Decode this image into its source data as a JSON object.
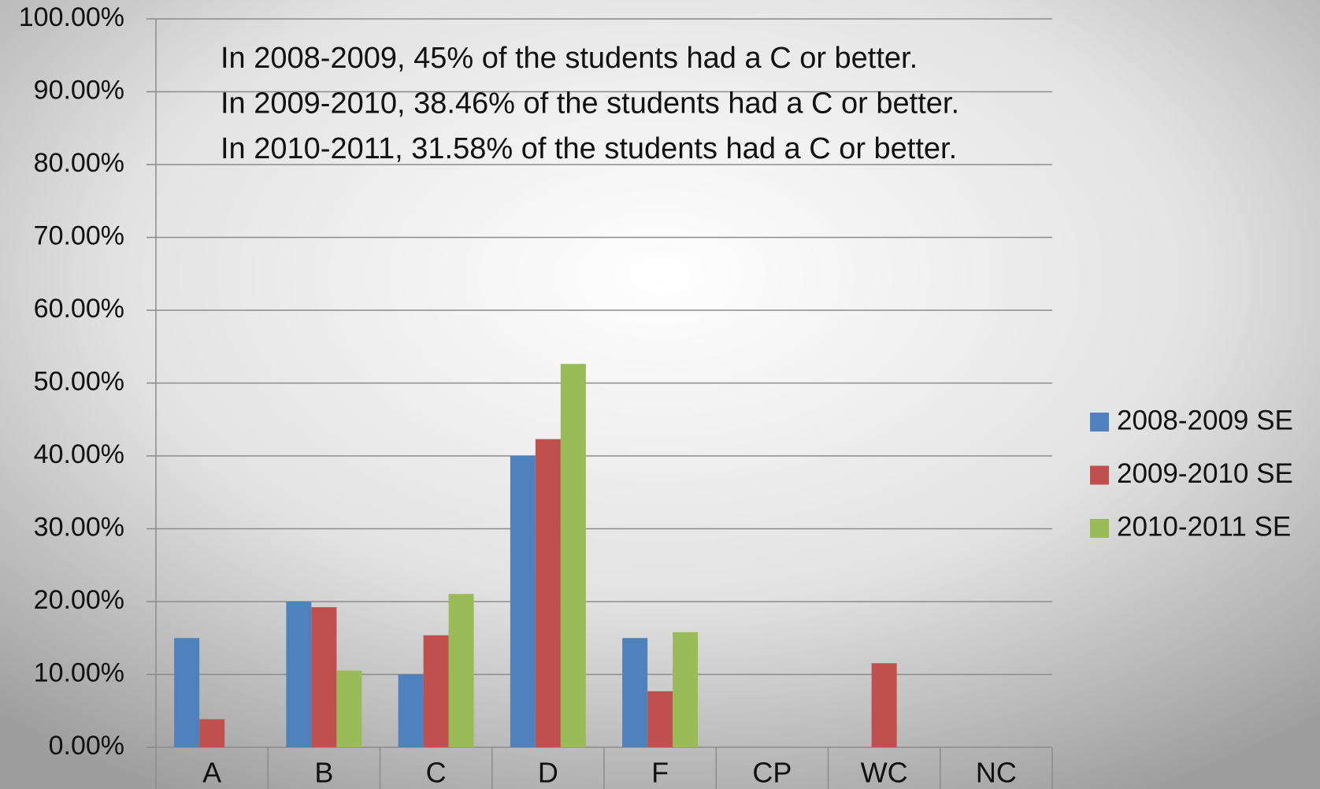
{
  "chart_data": {
    "type": "bar",
    "categories": [
      "A",
      "B",
      "C",
      "D",
      "F",
      "CP",
      "WC",
      "NC"
    ],
    "series": [
      {
        "name": "2008-2009 SE",
        "color": "#4f81bd",
        "values": [
          15,
          20,
          10,
          40,
          15,
          0,
          0,
          0
        ]
      },
      {
        "name": "2009-2010 SE",
        "color": "#c0504d",
        "values": [
          3.85,
          19.23,
          15.38,
          42.31,
          7.69,
          0,
          11.54,
          0
        ]
      },
      {
        "name": "2010-2011 SE",
        "color": "#9bbb59",
        "values": [
          0,
          10.53,
          21.05,
          52.63,
          15.79,
          0,
          0,
          0
        ]
      }
    ],
    "ylim": [
      0,
      100
    ],
    "yticks": [
      {
        "value": 0,
        "label": "0.00%"
      },
      {
        "value": 10,
        "label": "10.00%"
      },
      {
        "value": 20,
        "label": "20.00%"
      },
      {
        "value": 30,
        "label": "30.00%"
      },
      {
        "value": 40,
        "label": "40.00%"
      },
      {
        "value": 50,
        "label": "50.00%"
      },
      {
        "value": 60,
        "label": "60.00%"
      },
      {
        "value": 70,
        "label": "70.00%"
      },
      {
        "value": 80,
        "label": "80.00%"
      },
      {
        "value": 90,
        "label": "90.00%"
      },
      {
        "value": 100,
        "label": "100.00%"
      }
    ],
    "grid": true,
    "legend": "right",
    "annotations": [
      "In 2008-2009, 45% of the students had a C or better.",
      "In 2009-2010, 38.46% of the students had a C or better.",
      "In 2010-2011, 31.58% of the students had a C or better."
    ]
  }
}
